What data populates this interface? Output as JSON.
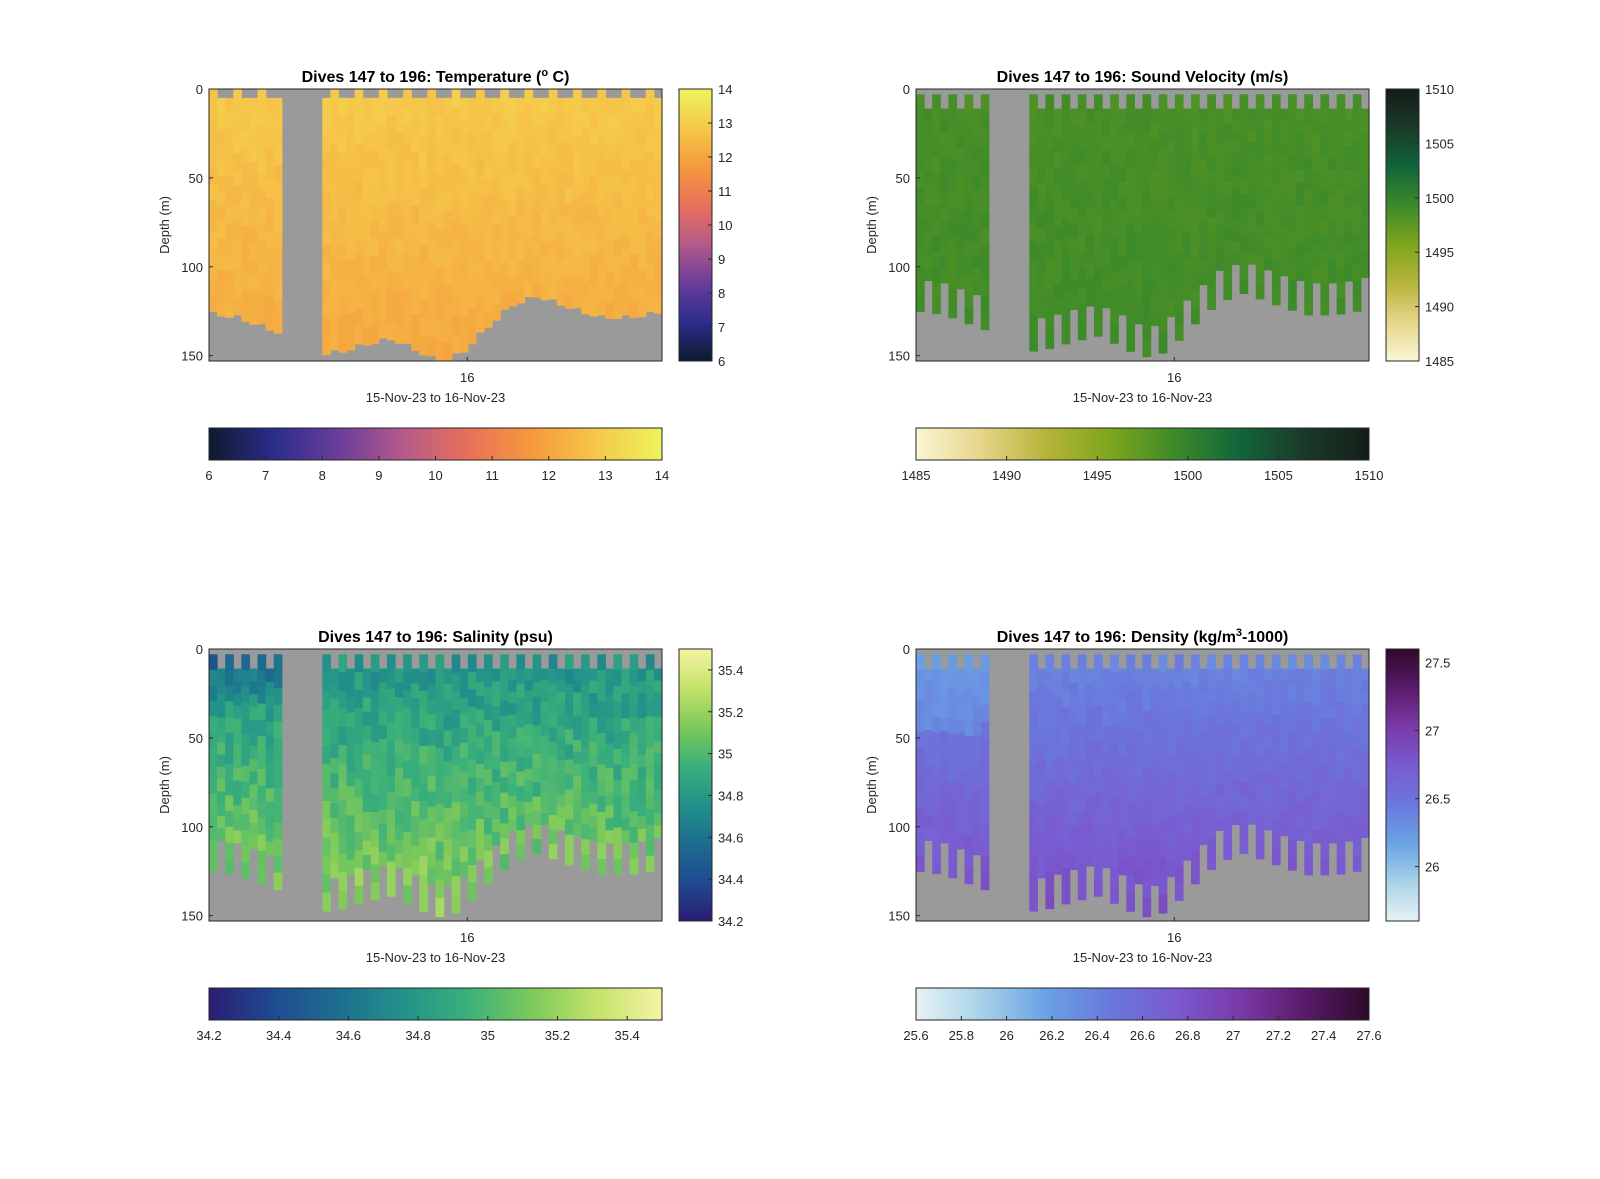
{
  "chart_data": [
    {
      "type": "heatmap",
      "title": "Dives 147 to 196: Temperature (",
      "title_sup": "o",
      "title_end": " C)",
      "ylabel": "Depth (m)",
      "xlabel": "15-Nov-23 to 16-Nov-23",
      "x_ticks": [
        "16"
      ],
      "y_ticks": [
        0,
        50,
        100,
        150
      ],
      "ylim": [
        0,
        153
      ],
      "variable": "temperature",
      "clim": [
        6,
        14
      ],
      "right_colorbar_ticks": [
        "6",
        "7",
        "8",
        "9",
        "10",
        "11",
        "12",
        "13",
        "14"
      ],
      "bottom_colorbar_ticks": [
        "6",
        "7",
        "8",
        "9",
        "10",
        "11",
        "12",
        "13",
        "14"
      ],
      "colors": [
        "#0d1a2e",
        "#2b2d8a",
        "#6a3d9a",
        "#b45a8a",
        "#e8705a",
        "#f59a3c",
        "#f5c84a",
        "#edf45c"
      ],
      "surface_value": 12.9,
      "deep_value": 12.1,
      "surface_variation": 0.15
    },
    {
      "type": "heatmap",
      "title": "Dives 147 to 196: Sound Velocity (m/s)",
      "ylabel": "Depth (m)",
      "xlabel": "15-Nov-23 to 16-Nov-23",
      "x_ticks": [
        "16"
      ],
      "y_ticks": [
        0,
        50,
        100,
        150
      ],
      "ylim": [
        0,
        153
      ],
      "variable": "sound-velocity",
      "clim": [
        1485,
        1510
      ],
      "right_colorbar_ticks": [
        "1485",
        "1490",
        "1495",
        "1500",
        "1505",
        "1510"
      ],
      "bottom_colorbar_ticks": [
        "1485",
        "1490",
        "1495",
        "1500",
        "1505",
        "1510"
      ],
      "colors": [
        "#fbf6d4",
        "#e6d58a",
        "#b6b43a",
        "#7ea51c",
        "#3c8a2a",
        "#11653a",
        "#1b3a2a",
        "#141d18"
      ],
      "surface_value": 1498.6,
      "deep_value": 1499.0,
      "surface_variation": 0.4
    },
    {
      "type": "heatmap",
      "title": "Dives 147 to 196: Salinity (psu)",
      "ylabel": "Depth (m)",
      "xlabel": "15-Nov-23 to 16-Nov-23",
      "x_ticks": [
        "16"
      ],
      "y_ticks": [
        0,
        50,
        100,
        150
      ],
      "ylim": [
        0,
        153
      ],
      "variable": "salinity",
      "clim": [
        34.2,
        35.5
      ],
      "right_colorbar_ticks": [
        "34.2",
        "34.4",
        "34.6",
        "34.8",
        "35",
        "35.2",
        "35.4"
      ],
      "bottom_colorbar_ticks": [
        "34.2",
        "34.4",
        "34.6",
        "34.8",
        "35",
        "35.2",
        "35.4"
      ],
      "colors": [
        "#2a1d72",
        "#1f4b91",
        "#1d6d8f",
        "#22928a",
        "#3bb07a",
        "#7dc95a",
        "#c4e36a",
        "#f6f3a4"
      ],
      "surface_value": 34.75,
      "deep_value": 35.2,
      "surface_variation": 0.1
    },
    {
      "type": "heatmap",
      "title": "Dives 147 to 196: Density (kg/m",
      "title_sup": "3",
      "title_end": "-1000)",
      "ylabel": "Depth (m)",
      "xlabel": "15-Nov-23 to 16-Nov-23",
      "x_ticks": [
        "16"
      ],
      "y_ticks": [
        0,
        50,
        100,
        150
      ],
      "ylim": [
        0,
        153
      ],
      "variable": "density",
      "clim": [
        25.6,
        27.6
      ],
      "right_colorbar_ticks": [
        "26",
        "26.5",
        "27",
        "27.5"
      ],
      "bottom_colorbar_ticks": [
        "25.6",
        "25.8",
        "26",
        "26.2",
        "26.4",
        "26.6",
        "26.8",
        "27",
        "27.2",
        "27.4",
        "27.6"
      ],
      "colors": [
        "#e7f2f4",
        "#a8d2e8",
        "#6aa2e4",
        "#6a78dc",
        "#7a5ad0",
        "#7a3aa8",
        "#5a1a6a",
        "#2d0a2a"
      ],
      "surface_value": 26.35,
      "deep_value": 26.85,
      "surface_variation": 0.05
    }
  ]
}
